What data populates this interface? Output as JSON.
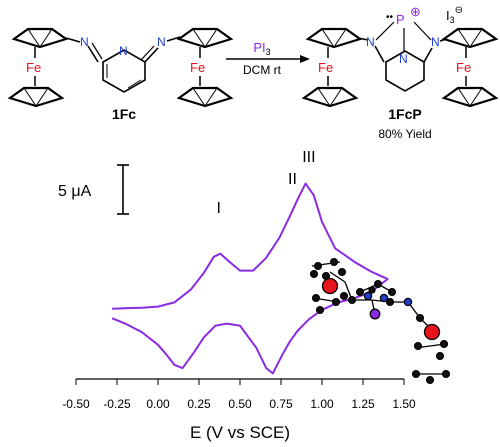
{
  "scheme": {
    "reactant_label": "1Fc",
    "product_label": "1FcP",
    "reagent_element": "PI",
    "reagent_subscript": "3",
    "conditions": "DCM rt",
    "yield_text": "80% Yield",
    "fe_atom": "Fe",
    "n_atom": "N",
    "p_atom": "P",
    "counter_ion": "I",
    "counter_ion_subscript": "3",
    "charge": "⊖",
    "p_charge": "⊕"
  },
  "chart_data": {
    "type": "line",
    "xlabel": "E (V vs SCE)",
    "xlim": [
      -0.5,
      1.5
    ],
    "x_ticks": [
      -0.5,
      -0.25,
      0.0,
      0.25,
      0.5,
      0.75,
      1.0,
      1.25,
      1.5
    ],
    "x_tick_labels": [
      "-0.50",
      "-0.25",
      "0.00",
      "0.25",
      "0.50",
      "0.75",
      "1.00",
      "1.25",
      "1.50"
    ],
    "scale_bar_label": "5 μA",
    "scale_bar_value_uA": 5,
    "peak_labels": [
      {
        "text": "I",
        "x": 0.37
      },
      {
        "text": "II",
        "x": 0.82
      },
      {
        "text": "III",
        "x": 0.92
      }
    ],
    "series": [
      {
        "color": "#8a2be2",
        "x": [
          -0.28,
          -0.2,
          -0.1,
          0.0,
          0.1,
          0.2,
          0.28,
          0.34,
          0.38,
          0.43,
          0.5,
          0.58,
          0.66,
          0.74,
          0.8,
          0.86,
          0.9,
          0.95,
          1.0,
          1.08,
          1.2,
          1.3,
          1.4,
          1.3,
          1.2,
          1.1,
          1.0,
          0.92,
          0.85,
          0.8,
          0.76,
          0.73,
          0.7,
          0.66,
          0.6,
          0.5,
          0.42,
          0.35,
          0.28,
          0.22,
          0.15,
          0.1,
          0.05,
          0.0,
          -0.1,
          -0.2,
          -0.28
        ],
        "y": [
          -1.2,
          -1.15,
          -1.1,
          -1.0,
          -0.6,
          0.6,
          2.2,
          3.7,
          4.0,
          3.3,
          2.4,
          2.4,
          3.6,
          5.5,
          7.4,
          9.4,
          10.6,
          9.5,
          7.0,
          4.5,
          3.2,
          2.3,
          1.6,
          0.4,
          -0.2,
          -0.6,
          -1.3,
          -2.2,
          -3.3,
          -4.4,
          -5.5,
          -6.4,
          -7.3,
          -6.8,
          -4.9,
          -2.8,
          -2.6,
          -2.8,
          -3.9,
          -5.3,
          -6.8,
          -6.5,
          -5.5,
          -4.6,
          -3.4,
          -2.6,
          -2.1
        ]
      }
    ]
  }
}
